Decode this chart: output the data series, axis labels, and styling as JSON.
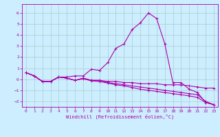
{
  "title": "",
  "xlabel": "Windchill (Refroidissement éolien,°C)",
  "ylabel": "",
  "bg_color": "#cceeff",
  "line_color": "#aa00aa",
  "grid_color": "#aacccc",
  "xlim": [
    -0.5,
    23.5
  ],
  "ylim": [
    -2.5,
    6.8
  ],
  "yticks": [
    -2,
    -1,
    0,
    1,
    2,
    3,
    4,
    5,
    6
  ],
  "xticks": [
    0,
    1,
    2,
    3,
    4,
    5,
    6,
    7,
    8,
    9,
    10,
    11,
    12,
    13,
    14,
    15,
    16,
    17,
    18,
    19,
    20,
    21,
    22,
    23
  ],
  "curve1": [
    0.6,
    0.3,
    -0.2,
    -0.2,
    0.2,
    0.2,
    0.3,
    0.3,
    0.9,
    0.8,
    1.5,
    2.8,
    3.2,
    4.5,
    5.1,
    6.0,
    5.5,
    3.2,
    -0.3,
    -0.3,
    -0.9,
    -1.2,
    -2.1,
    -2.3
  ],
  "curve2": [
    0.6,
    0.3,
    -0.2,
    -0.2,
    0.2,
    0.1,
    -0.1,
    0.1,
    -0.1,
    -0.1,
    -0.2,
    -0.2,
    -0.3,
    -0.3,
    -0.4,
    -0.4,
    -0.4,
    -0.5,
    -0.5,
    -0.5,
    -0.6,
    -0.7,
    -0.8,
    -0.8
  ],
  "curve3": [
    0.6,
    0.3,
    -0.2,
    -0.2,
    0.2,
    0.1,
    -0.1,
    0.1,
    -0.1,
    -0.1,
    -0.3,
    -0.4,
    -0.5,
    -0.6,
    -0.7,
    -0.8,
    -0.9,
    -1.0,
    -1.1,
    -1.2,
    -1.3,
    -1.4,
    -2.0,
    -2.3
  ],
  "curve4": [
    0.6,
    0.3,
    -0.2,
    -0.2,
    0.2,
    0.1,
    -0.1,
    0.05,
    -0.15,
    -0.2,
    -0.35,
    -0.5,
    -0.6,
    -0.75,
    -0.9,
    -1.0,
    -1.1,
    -1.2,
    -1.3,
    -1.4,
    -1.5,
    -1.65,
    -2.1,
    -2.3
  ],
  "tick_fontsize": 4.5,
  "label_fontsize": 5.0
}
